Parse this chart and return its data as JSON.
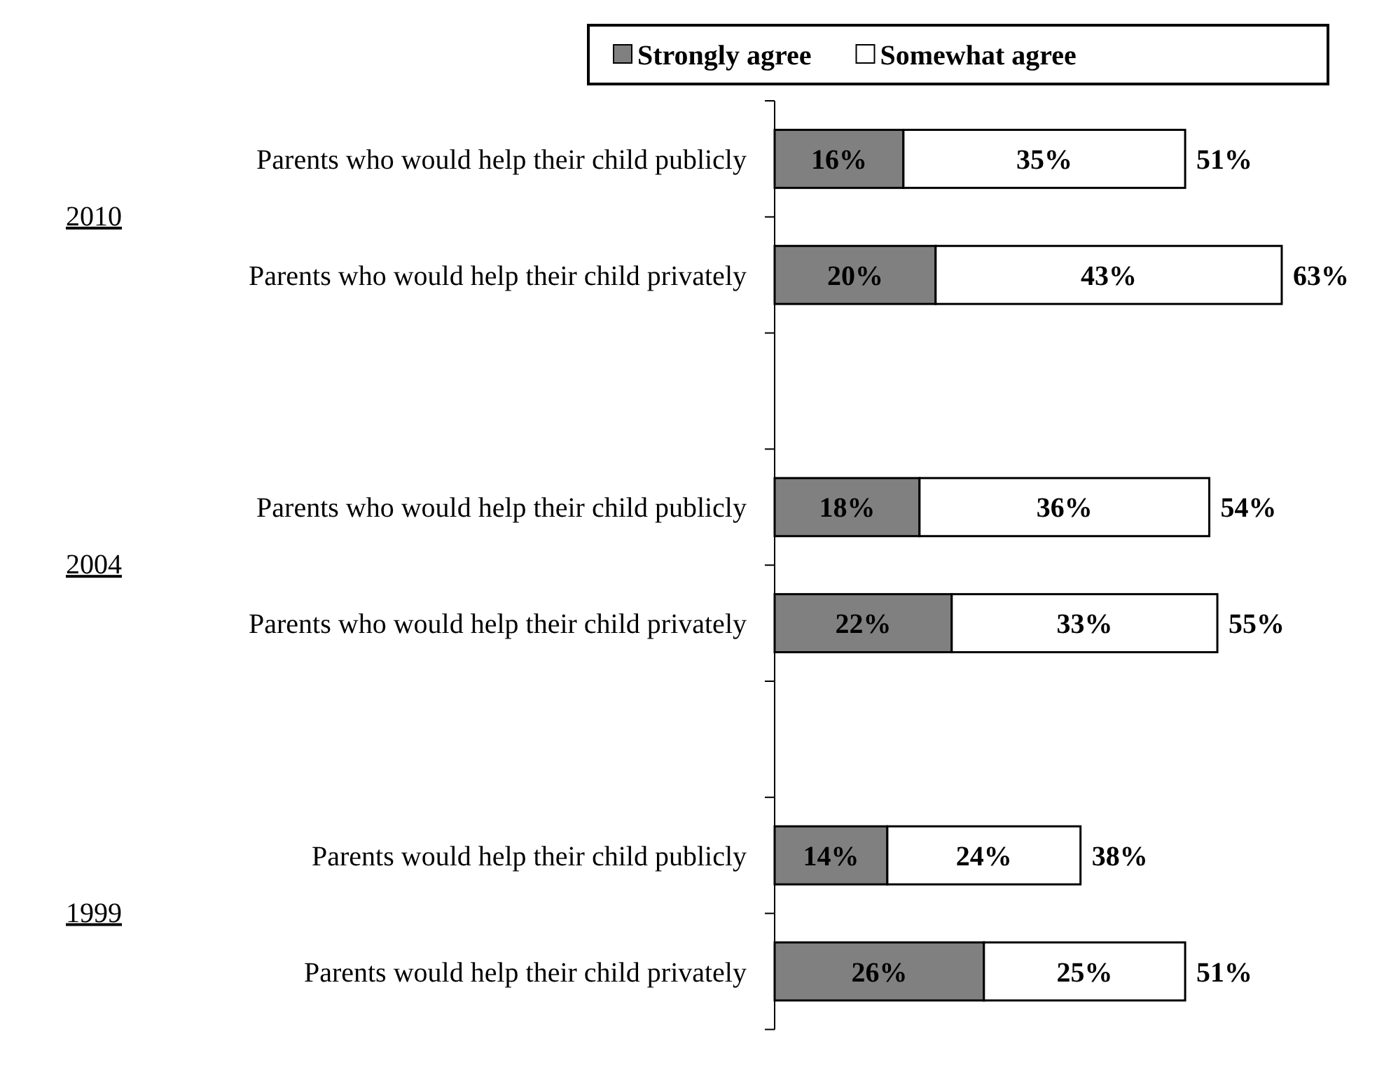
{
  "chart_data": {
    "type": "bar",
    "orientation": "horizontal",
    "stacked": true,
    "legend": "top",
    "categories": [
      "Parents who would help their child publicly",
      "Parents who would help their child privately",
      null,
      "Parents who would help their child publicly",
      "Parents who would help their child privately",
      null,
      "Parents would help their child publicly",
      "Parents would help their child privately"
    ],
    "series": [
      {
        "name": "Strongly agree",
        "color": "#808080",
        "values": [
          16,
          20,
          null,
          18,
          22,
          null,
          14,
          26
        ],
        "value_labels": [
          "16%",
          "20%",
          null,
          "18%",
          "22%",
          null,
          "14%",
          "26%"
        ]
      },
      {
        "name": "Somewhat agree",
        "color": "#ffffff",
        "values": [
          35,
          43,
          null,
          36,
          33,
          null,
          24,
          25
        ],
        "value_labels": [
          "35%",
          "43%",
          null,
          "36%",
          "33%",
          null,
          "24%",
          "25%"
        ]
      }
    ],
    "totals": [
      "51%",
      "63%",
      null,
      "54%",
      "55%",
      null,
      "38%",
      "51%"
    ],
    "annotations": [
      "2010",
      "2004",
      "1999"
    ]
  }
}
